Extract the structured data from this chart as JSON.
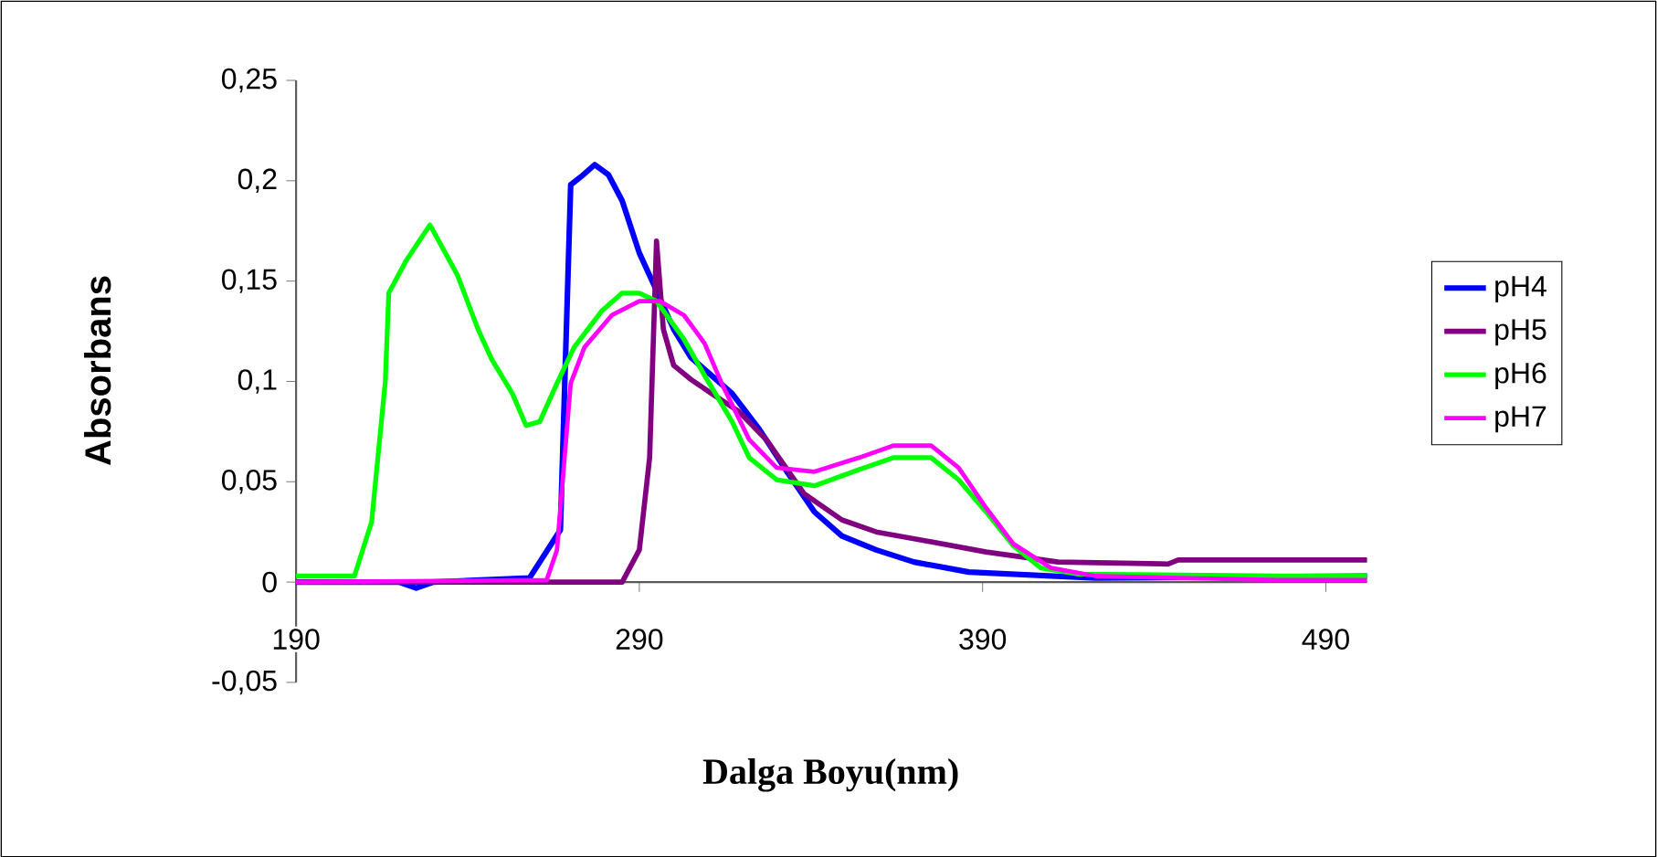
{
  "chart_data": {
    "type": "line",
    "xlabel": "Dalga Boyu(nm)",
    "ylabel": "Absorbans",
    "xlim": [
      190,
      502
    ],
    "ylim": [
      -0.05,
      0.25
    ],
    "xticks": [
      190,
      290,
      390,
      490
    ],
    "yticks": [
      {
        "value": -0.05,
        "label": "-0,05"
      },
      0,
      {
        "value": 0.05,
        "label": "0,05"
      },
      {
        "value": 0.1,
        "label": "0,1"
      },
      {
        "value": 0.15,
        "label": "0,15"
      },
      {
        "value": 0.2,
        "label": "0,2"
      },
      {
        "value": 0.25,
        "label": "0,25"
      }
    ],
    "legend": "right",
    "line_style": "solid",
    "marker": "none",
    "series": [
      {
        "name": "pH4",
        "color": "#0000ff",
        "x": [
          190,
          220,
          225,
          230,
          258,
          267,
          270,
          273,
          277,
          281,
          285,
          290,
          294,
          300,
          305,
          311,
          317,
          325,
          333,
          341,
          349,
          359,
          370,
          386,
          423,
          502
        ],
        "values": [
          0,
          0,
          -0.003,
          0,
          0.002,
          0.026,
          0.198,
          0.202,
          0.208,
          0.203,
          0.19,
          0.164,
          0.149,
          0.126,
          0.112,
          0.103,
          0.094,
          0.076,
          0.055,
          0.035,
          0.023,
          0.016,
          0.01,
          0.005,
          0.002,
          0.003
        ]
      },
      {
        "name": "pH5",
        "color": "#800080",
        "x": [
          190,
          285,
          290,
          293,
          295,
          297,
          300,
          305,
          311,
          319,
          327,
          338,
          349,
          359,
          372,
          391,
          412,
          444,
          447,
          502
        ],
        "values": [
          0,
          0,
          0.016,
          0.062,
          0.17,
          0.126,
          0.108,
          0.101,
          0.094,
          0.085,
          0.071,
          0.044,
          0.031,
          0.025,
          0.021,
          0.015,
          0.01,
          0.009,
          0.011,
          0.011
        ]
      },
      {
        "name": "pH6",
        "color": "#00ff00",
        "x": [
          190,
          207,
          212,
          216,
          217,
          222,
          229,
          237,
          243,
          247,
          253,
          257,
          261,
          266,
          271,
          279,
          285,
          290,
          295,
          303,
          309,
          317,
          322,
          330,
          341,
          354,
          364,
          375,
          383,
          391,
          399,
          407,
          418,
          476,
          502
        ],
        "values": [
          0.003,
          0.003,
          0.03,
          0.1,
          0.144,
          0.16,
          0.178,
          0.153,
          0.126,
          0.111,
          0.094,
          0.078,
          0.08,
          0.099,
          0.117,
          0.135,
          0.144,
          0.144,
          0.14,
          0.121,
          0.103,
          0.08,
          0.062,
          0.051,
          0.048,
          0.056,
          0.062,
          0.062,
          0.051,
          0.035,
          0.018,
          0.007,
          0.004,
          0.003,
          0.003
        ]
      },
      {
        "name": "pH7",
        "color": "#ff00ff",
        "x": [
          190,
          263,
          266,
          270,
          274,
          282,
          290,
          296,
          303,
          309,
          314,
          322,
          330,
          341,
          354,
          364,
          375,
          383,
          391,
          399,
          410,
          423,
          476,
          502
        ],
        "values": [
          0,
          0.001,
          0.016,
          0.099,
          0.117,
          0.133,
          0.14,
          0.14,
          0.133,
          0.119,
          0.099,
          0.071,
          0.057,
          0.055,
          0.062,
          0.068,
          0.068,
          0.057,
          0.037,
          0.019,
          0.007,
          0.003,
          0.001,
          0.001
        ]
      }
    ]
  }
}
